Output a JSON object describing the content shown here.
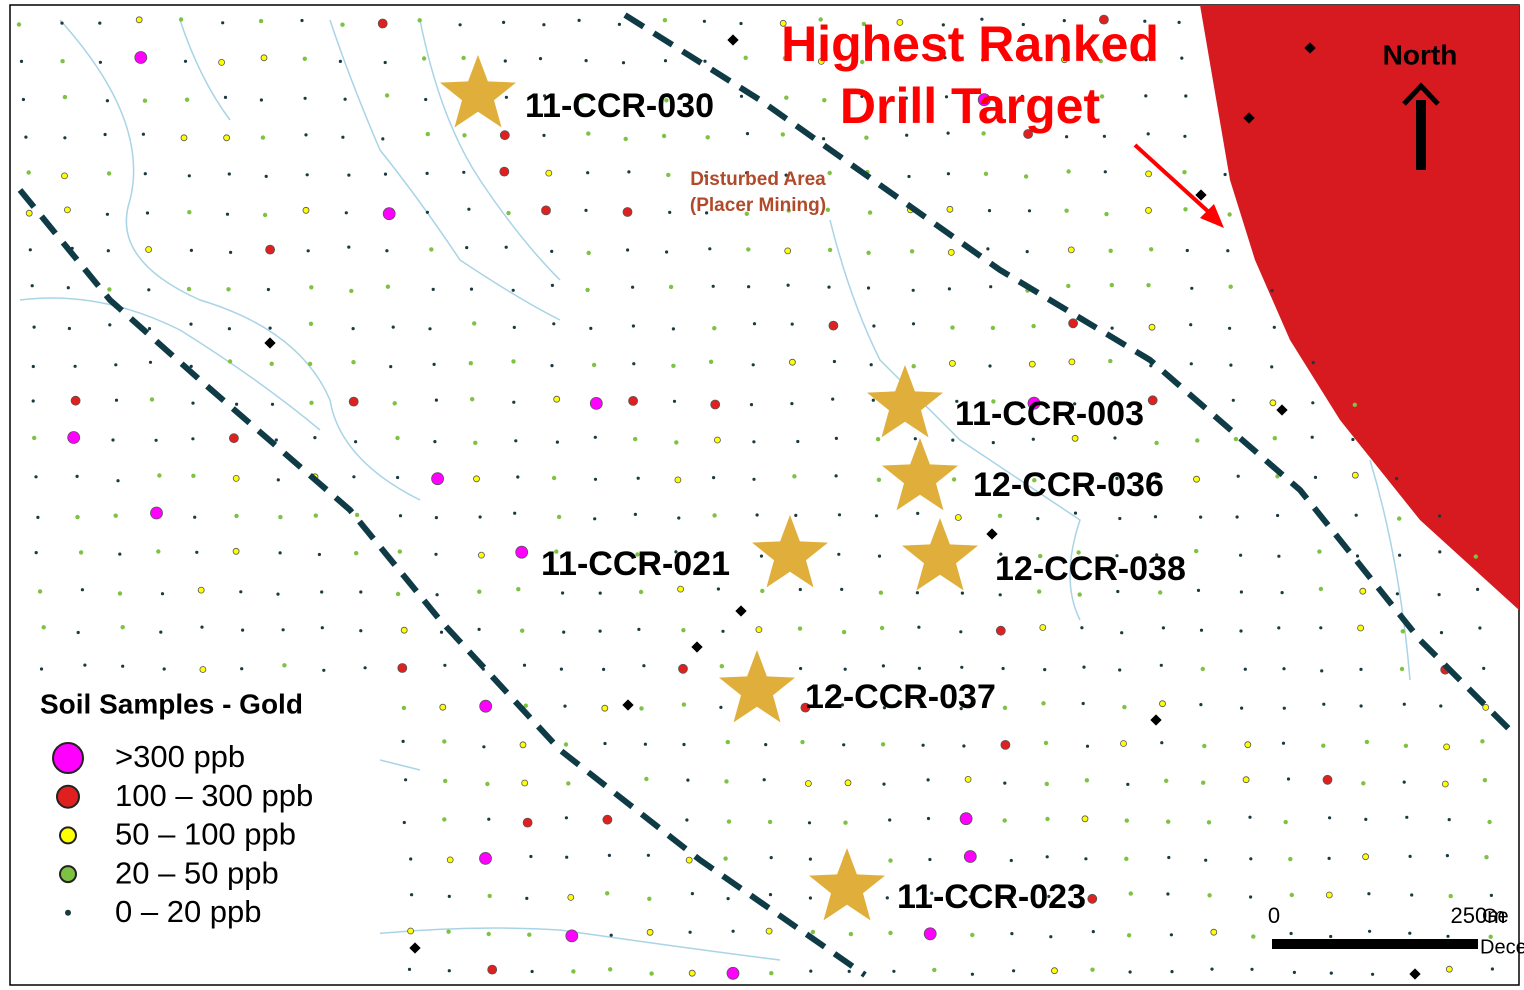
{
  "map": {
    "target_title": [
      "Highest Ranked",
      "Drill Target"
    ],
    "north": "North",
    "disturbed_area": [
      "Disturbed Area",
      "(Placer Mining)"
    ],
    "drill_holes": [
      {
        "label": "11-CCR-030"
      },
      {
        "label": "11-CCR-003"
      },
      {
        "label": "12-CCR-036"
      },
      {
        "label": "11-CCR-021"
      },
      {
        "label": "12-CCR-038"
      },
      {
        "label": "12-CCR-037"
      },
      {
        "label": "11-CCR-023"
      }
    ],
    "legend": {
      "title": "Soil Samples - Gold",
      "items": [
        {
          "label": ">300 ppb",
          "color": "#ff00ff"
        },
        {
          "label": "100 – 300 ppb",
          "color": "#e0201f"
        },
        {
          "label": "50 – 100 ppb",
          "color": "#ffff00"
        },
        {
          "label": "20 – 50 ppb",
          "color": "#7dc242"
        },
        {
          "label": "0 – 20 ppb",
          "color": "#1a3a40"
        }
      ]
    },
    "scale": {
      "start": "0",
      "end": "250m"
    },
    "cut_text": [
      "Ge",
      "Dece"
    ]
  }
}
